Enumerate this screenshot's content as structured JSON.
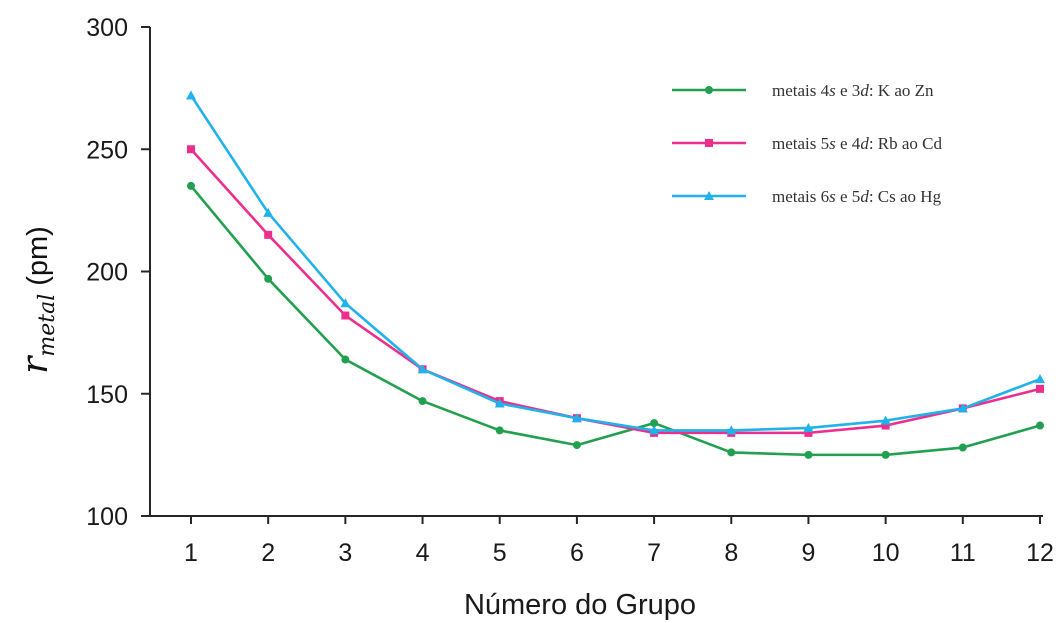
{
  "chart_data": {
    "type": "line",
    "x": [
      1,
      2,
      3,
      4,
      5,
      6,
      7,
      8,
      9,
      10,
      11,
      12
    ],
    "tick_labels_x": [
      "1",
      "2",
      "3",
      "4",
      "5",
      "6",
      "7",
      "8",
      "9",
      "10",
      "11",
      "12"
    ],
    "tick_labels_y": [
      "100",
      "150",
      "200",
      "250",
      "300"
    ],
    "yticks": [
      100,
      150,
      200,
      250,
      300
    ],
    "xlim": [
      1,
      12
    ],
    "ylim": [
      100,
      300
    ],
    "xlabel": "Número do Grupo",
    "ylabel": {
      "symbol": "r",
      "subscript": "metal",
      "unit": "(pm)"
    },
    "grid": false,
    "legend_position": "top-right",
    "series": [
      {
        "name_parts": [
          "metais 4",
          "s",
          " e 3",
          "d",
          ": K ao Zn"
        ],
        "color": "#22a04f",
        "marker": "circle",
        "values": [
          235,
          197,
          164,
          147,
          135,
          129,
          138,
          126,
          125,
          125,
          128,
          137
        ]
      },
      {
        "name_parts": [
          "metais 5",
          "s",
          " e 4",
          "d",
          ": Rb ao Cd"
        ],
        "color": "#ec2f8d",
        "marker": "square",
        "values": [
          250,
          215,
          182,
          160,
          147,
          140,
          134,
          134,
          134,
          137,
          144,
          152
        ]
      },
      {
        "name_parts": [
          "metais 6",
          "s",
          " e 5",
          "d",
          ": Cs ao Hg"
        ],
        "color": "#21b2ea",
        "marker": "triangle",
        "values": [
          272,
          224,
          187,
          160,
          146,
          140,
          135,
          135,
          136,
          139,
          144,
          156
        ]
      }
    ]
  }
}
